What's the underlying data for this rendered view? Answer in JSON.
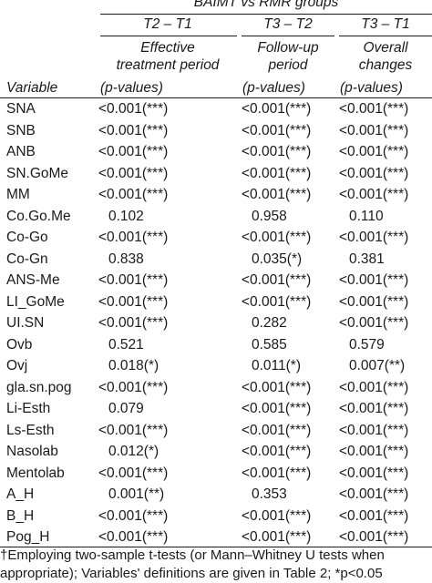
{
  "table": {
    "group_title": "BAIMT vs RMR groups",
    "columns": [
      {
        "period": "T2 – T1",
        "desc_line1": "Effective",
        "desc_line2": "treatment period",
        "pvalues_label": "(p-values)"
      },
      {
        "period": "T3 – T2",
        "desc_line1": "Follow-up",
        "desc_line2": "period",
        "pvalues_label": "(p-values)"
      },
      {
        "period": "T3 – T1",
        "desc_line1": "Overall",
        "desc_line2": "changes",
        "pvalues_label": "(p-values)"
      }
    ],
    "variable_header": "Variable",
    "rows": [
      {
        "variable": "SNA",
        "c1": "<0.001(***)",
        "c2": "<0.001(***)",
        "c3": "<0.001(***)"
      },
      {
        "variable": "SNB",
        "c1": "<0.001(***)",
        "c2": "<0.001(***)",
        "c3": "<0.001(***)"
      },
      {
        "variable": "ANB",
        "c1": "<0.001(***)",
        "c2": "<0.001(***)",
        "c3": "<0.001(***)"
      },
      {
        "variable": "SN.GoMe",
        "c1": "<0.001(***)",
        "c2": "<0.001(***)",
        "c3": "<0.001(***)"
      },
      {
        "variable": "MM",
        "c1": "<0.001(***)",
        "c2": "<0.001(***)",
        "c3": "<0.001(***)"
      },
      {
        "variable": "Co.Go.Me",
        "c1": "0.102",
        "c2": "0.958",
        "c3": "0.110"
      },
      {
        "variable": "Co-Go",
        "c1": "<0.001(***)",
        "c2": "<0.001(***)",
        "c3": "<0.001(***)"
      },
      {
        "variable": "Co-Gn",
        "c1": "0.838",
        "c2": "0.035(*)",
        "c3": "0.381"
      },
      {
        "variable": "ANS-Me",
        "c1": "<0.001(***)",
        "c2": "<0.001(***)",
        "c3": "<0.001(***)"
      },
      {
        "variable": "LI_GoMe",
        "c1": "<0.001(***)",
        "c2": "<0.001(***)",
        "c3": "<0.001(***)"
      },
      {
        "variable": "UI.SN",
        "c1": "<0.001(***)",
        "c2": "0.282",
        "c3": "<0.001(***)"
      },
      {
        "variable": "Ovb",
        "c1": "0.521",
        "c2": "0.585",
        "c3": "0.579"
      },
      {
        "variable": "Ovj",
        "c1": "0.018(*)",
        "c2": "0.011(*)",
        "c3": "0.007(**)"
      },
      {
        "variable": "gla.sn.pog",
        "c1": "<0.001(***)",
        "c2": "<0.001(***)",
        "c3": "<0.001(***)"
      },
      {
        "variable": "Li-Esth",
        "c1": "0.079",
        "c2": "<0.001(***)",
        "c3": "<0.001(***)"
      },
      {
        "variable": "Ls-Esth",
        "c1": "<0.001(***)",
        "c2": "<0.001(***)",
        "c3": "<0.001(***)"
      },
      {
        "variable": "Nasolab",
        "c1": "0.012(*)",
        "c2": "<0.001(***)",
        "c3": "<0.001(***)"
      },
      {
        "variable": "Mentolab",
        "c1": "<0.001(***)",
        "c2": "<0.001(***)",
        "c3": "<0.001(***)"
      },
      {
        "variable": "A_H",
        "c1": "0.001(**)",
        "c2": "0.353",
        "c3": "<0.001(***)"
      },
      {
        "variable": "B_H",
        "c1": "<0.001(***)",
        "c2": "<0.001(***)",
        "c3": "<0.001(***)"
      },
      {
        "variable": "Pog_H",
        "c1": "<0.001(***)",
        "c2": "<0.001(***)",
        "c3": "<0.001(***)"
      }
    ],
    "footnote_line1": "†Employing two-sample t-tests (or Mann–Whitney U tests when",
    "footnote_line2": "appropriate); Variables' definitions are given in Table 2; *p<0.05"
  }
}
